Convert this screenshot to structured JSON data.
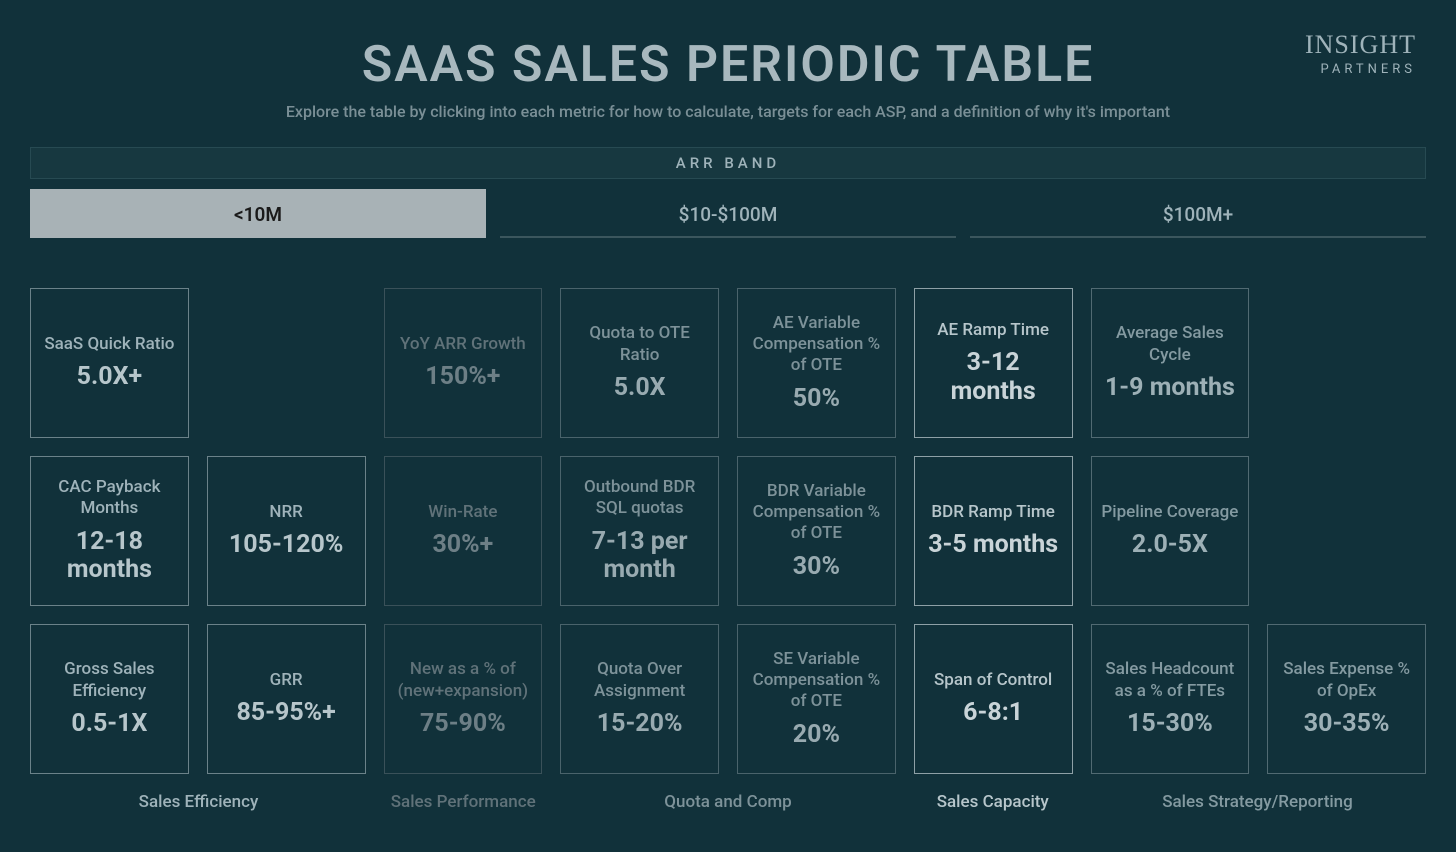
{
  "page": {
    "title": "SAAS SALES PERIODIC TABLE",
    "subtitle": "Explore the table by clicking into each metric for how to calculate, targets for each ASP, and a definition of why it's important"
  },
  "logo": {
    "line1": "INSIGHT",
    "line2": "PARTNERS"
  },
  "arr_band": {
    "label": "ARR BAND",
    "tabs": [
      {
        "id": "lt10m",
        "label": "<10M",
        "active": true
      },
      {
        "id": "10_100",
        "label": "$10-$100M",
        "active": false
      },
      {
        "id": "100p",
        "label": "$100M+",
        "active": false
      }
    ]
  },
  "colors": {
    "background": "#11313a",
    "sales_efficiency": {
      "border": "#6b8289",
      "text": "#9fb3ba",
      "value": "#b7c6cb"
    },
    "sales_performance": {
      "border": "#3a5159",
      "text": "#607279",
      "value": "#6d7f86"
    },
    "quota_and_comp": {
      "border": "#4a636b",
      "text": "#7d9299",
      "value": "#98aab0"
    },
    "sales_capacity": {
      "border": "#8ea0a6",
      "text": "#b7c6cb",
      "value": "#c9d4d8"
    },
    "sales_strategy": {
      "border": "#516a72",
      "text": "#849aa1",
      "value": "#9db0b6"
    }
  },
  "categories": [
    {
      "id": "sales_efficiency",
      "label": "Sales Efficiency",
      "color_key": "sales_efficiency"
    },
    {
      "id": "sales_performance",
      "label": "Sales Performance",
      "color_key": "sales_performance"
    },
    {
      "id": "quota_and_comp",
      "label": "Quota and Comp",
      "color_key": "quota_and_comp"
    },
    {
      "id": "sales_capacity",
      "label": "Sales Capacity",
      "color_key": "sales_capacity"
    },
    {
      "id": "sales_strategy",
      "label": "Sales Strategy/Reporting",
      "color_key": "sales_strategy"
    }
  ],
  "grid": {
    "cols": 8,
    "rows": 3,
    "cells": [
      {
        "row": 0,
        "col": 0,
        "name": "SaaS Quick Ratio",
        "value": "5.0X+",
        "cat": "sales_efficiency"
      },
      {
        "row": 0,
        "col": 2,
        "name": "YoY ARR Growth",
        "value": "150%+",
        "cat": "sales_performance"
      },
      {
        "row": 0,
        "col": 3,
        "name": "Quota to OTE Ratio",
        "value": "5.0X",
        "cat": "quota_and_comp"
      },
      {
        "row": 0,
        "col": 4,
        "name": "AE Variable Compensation % of OTE",
        "value": "50%",
        "cat": "quota_and_comp"
      },
      {
        "row": 0,
        "col": 5,
        "name": "AE Ramp Time",
        "value": "3-12 months",
        "cat": "sales_capacity"
      },
      {
        "row": 0,
        "col": 6,
        "name": "Average Sales Cycle",
        "value": "1-9 months",
        "cat": "sales_strategy"
      },
      {
        "row": 1,
        "col": 0,
        "name": "CAC Payback Months",
        "value": "12-18 months",
        "cat": "sales_efficiency"
      },
      {
        "row": 1,
        "col": 1,
        "name": "NRR",
        "value": "105-120%",
        "cat": "sales_efficiency"
      },
      {
        "row": 1,
        "col": 2,
        "name": "Win-Rate",
        "value": "30%+",
        "cat": "sales_performance"
      },
      {
        "row": 1,
        "col": 3,
        "name": "Outbound BDR SQL quotas",
        "value": "7-13 per month",
        "cat": "quota_and_comp"
      },
      {
        "row": 1,
        "col": 4,
        "name": "BDR Variable Compensation % of OTE",
        "value": "30%",
        "cat": "quota_and_comp"
      },
      {
        "row": 1,
        "col": 5,
        "name": "BDR Ramp Time",
        "value": "3-5 months",
        "cat": "sales_capacity"
      },
      {
        "row": 1,
        "col": 6,
        "name": "Pipeline Coverage",
        "value": "2.0-5X",
        "cat": "sales_strategy"
      },
      {
        "row": 2,
        "col": 0,
        "name": "Gross Sales Efficiency",
        "value": "0.5-1X",
        "cat": "sales_efficiency"
      },
      {
        "row": 2,
        "col": 1,
        "name": "GRR",
        "value": "85-95%+",
        "cat": "sales_efficiency"
      },
      {
        "row": 2,
        "col": 2,
        "name": "New as a % of (new+expansion)",
        "value": "75-90%",
        "cat": "sales_performance"
      },
      {
        "row": 2,
        "col": 3,
        "name": "Quota Over Assignment",
        "value": "15-20%",
        "cat": "quota_and_comp"
      },
      {
        "row": 2,
        "col": 4,
        "name": "SE Variable Compensation % of OTE",
        "value": "20%",
        "cat": "quota_and_comp"
      },
      {
        "row": 2,
        "col": 5,
        "name": "Span of Control",
        "value": "6-8:1",
        "cat": "sales_capacity"
      },
      {
        "row": 2,
        "col": 6,
        "name": "Sales Headcount as a % of FTEs",
        "value": "15-30%",
        "cat": "sales_strategy"
      },
      {
        "row": 2,
        "col": 7,
        "name": "Sales Expense % of OpEx",
        "value": "30-35%",
        "cat": "sales_strategy"
      }
    ]
  }
}
